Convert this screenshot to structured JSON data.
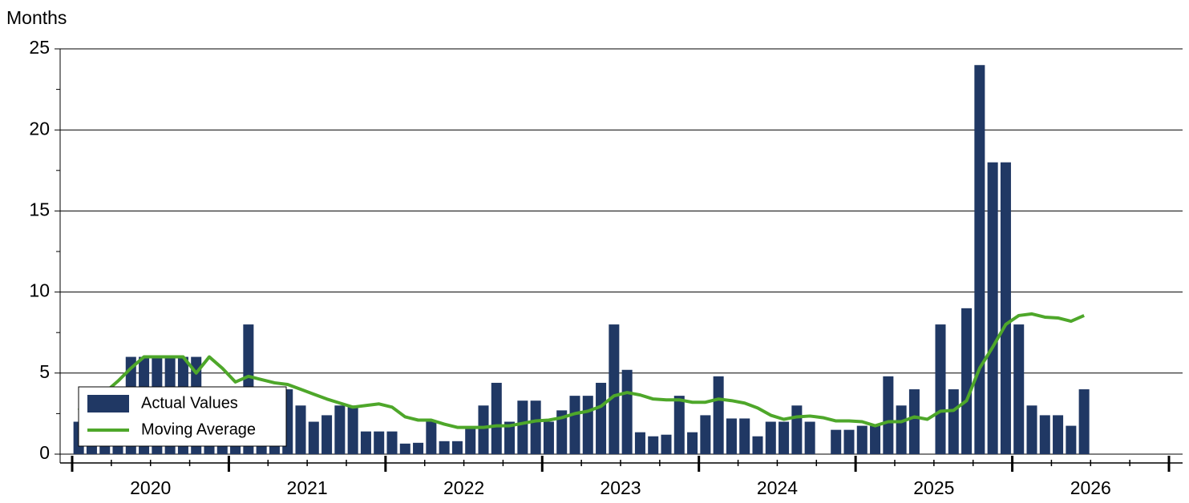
{
  "chart_data": {
    "type": "bar-line",
    "y_label": "Months",
    "categories": [
      null,
      null,
      null,
      null,
      null,
      null,
      null,
      null,
      null,
      null,
      null,
      null,
      null,
      null,
      null,
      null,
      null,
      null,
      null,
      null,
      null,
      null,
      null,
      null,
      null,
      null,
      null,
      null,
      null,
      null,
      null,
      null,
      null,
      null,
      null,
      null,
      null,
      null,
      null,
      null,
      null,
      null,
      null,
      null,
      null,
      null,
      null,
      null,
      null,
      null,
      null,
      null,
      null,
      null,
      null,
      null,
      null,
      null,
      null,
      null,
      null,
      null,
      null,
      null,
      null,
      null,
      null,
      null,
      null,
      null,
      null,
      null,
      null,
      null,
      null,
      null,
      null,
      null,
      null,
      null,
      null,
      null,
      null,
      null
    ],
    "year_labels": [
      "2020",
      "2021",
      "2022",
      "2023",
      "2024",
      "2025",
      "2026"
    ],
    "series": [
      {
        "name": "Actual Values",
        "type": "bar",
        "color": "#203864",
        "values": [
          2,
          2,
          2,
          4,
          6,
          6,
          6,
          6,
          6,
          6,
          3,
          3,
          4,
          8,
          4,
          4,
          4,
          3,
          2,
          2.4,
          3,
          3,
          1.4,
          1.4,
          1.4,
          0.65,
          0.7,
          2,
          0.8,
          0.8,
          1.6,
          3,
          4.4,
          2,
          3.3,
          3.3,
          2,
          2.7,
          3.6,
          3.6,
          4.4,
          8,
          5.2,
          1.35,
          1.1,
          1.2,
          3.6,
          1.35,
          2.4,
          4.8,
          2.2,
          2.2,
          1.1,
          2,
          2,
          3,
          2,
          null,
          1.5,
          1.5,
          1.75,
          1.75,
          4.8,
          3,
          4,
          null,
          8,
          4,
          9,
          24,
          18,
          18,
          8,
          3,
          2.4,
          2.4,
          1.75,
          4,
          null,
          null,
          null,
          null,
          null,
          null
        ]
      },
      {
        "name": "Moving Average",
        "type": "line",
        "color": "#4ea72a",
        "values": [
          2.7,
          3.4,
          3.8,
          4.5,
          5.3,
          6,
          6,
          6,
          6,
          5,
          6,
          5.3,
          4.45,
          4.8,
          4.6,
          4.4,
          4.3,
          4.0,
          3.7,
          3.4,
          3.15,
          2.9,
          3.0,
          3.1,
          2.9,
          2.3,
          2.1,
          2.1,
          1.85,
          1.65,
          1.65,
          1.65,
          1.75,
          1.75,
          1.9,
          2.05,
          2.1,
          2.25,
          2.5,
          2.65,
          2.95,
          3.6,
          3.8,
          3.65,
          3.4,
          3.35,
          3.35,
          3.2,
          3.2,
          3.4,
          3.3,
          3.15,
          2.85,
          2.4,
          2.15,
          2.3,
          2.35,
          2.25,
          2.05,
          2.05,
          2.0,
          1.75,
          2.0,
          2.0,
          2.3,
          2.15,
          2.65,
          2.7,
          3.3,
          5.3,
          6.6,
          8.0,
          8.55,
          8.65,
          8.45,
          8.4,
          8.2,
          8.55,
          null,
          null,
          null,
          null,
          null,
          null
        ]
      }
    ],
    "ylim": [
      0,
      25
    ],
    "yticks": [
      0,
      5,
      10,
      15,
      20,
      25
    ],
    "grid": true,
    "legend": "lower left"
  }
}
